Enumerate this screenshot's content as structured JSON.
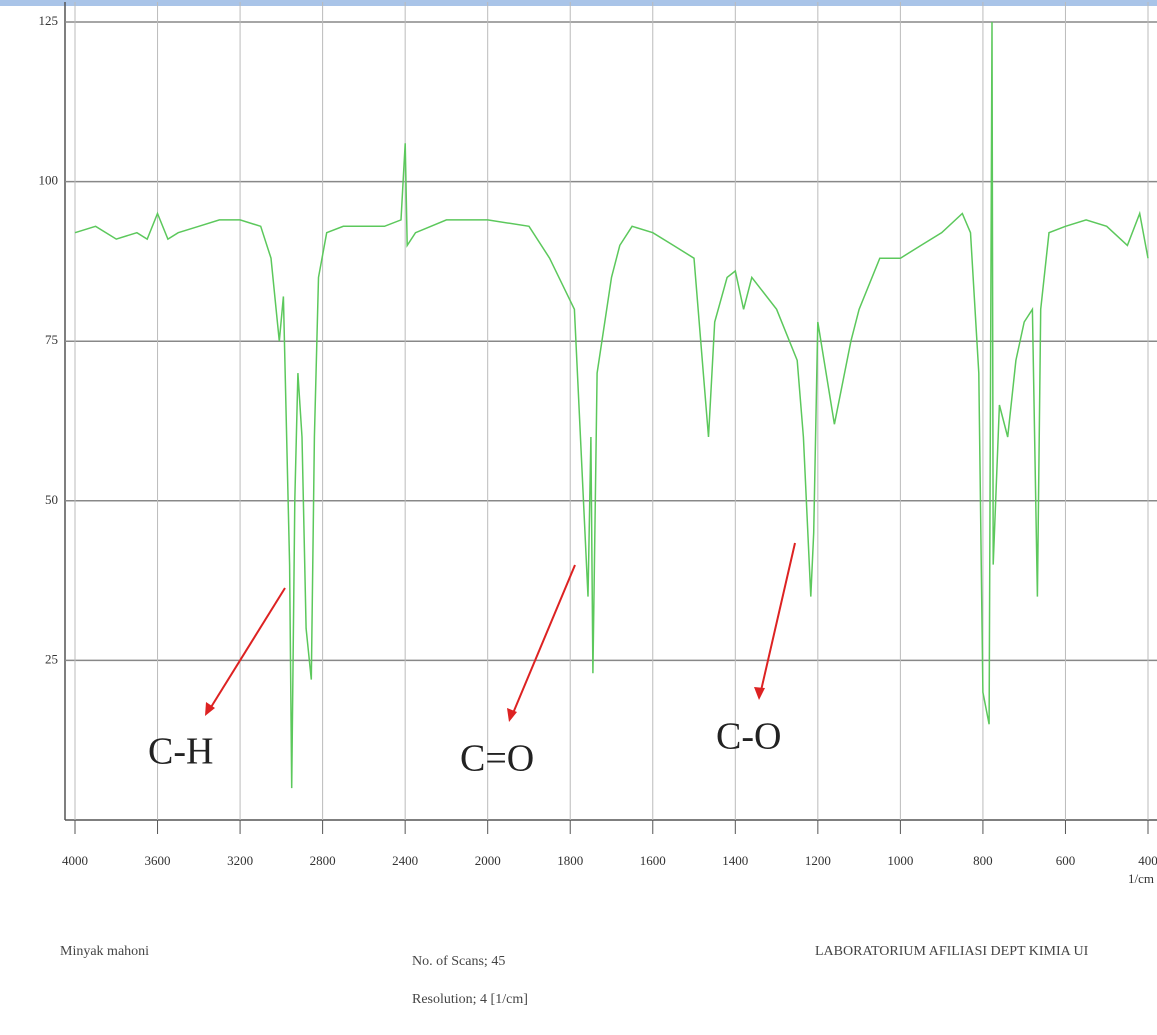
{
  "chart_data": {
    "type": "line",
    "x": [
      4000,
      3900,
      3800,
      3700,
      3650,
      3600,
      3550,
      3500,
      3400,
      3300,
      3200,
      3100,
      3050,
      3010,
      2990,
      2960,
      2950,
      2935,
      2920,
      2900,
      2880,
      2855,
      2840,
      2820,
      2780,
      2700,
      2600,
      2500,
      2420,
      2400,
      2390,
      2350,
      2200,
      2000,
      1900,
      1850,
      1790,
      1757,
      1750,
      1745,
      1735,
      1700,
      1680,
      1650,
      1600,
      1550,
      1500,
      1465,
      1450,
      1420,
      1400,
      1380,
      1360,
      1300,
      1250,
      1235,
      1217,
      1210,
      1200,
      1160,
      1120,
      1100,
      1050,
      1000,
      950,
      900,
      850,
      830,
      810,
      800,
      785,
      778,
      775,
      760,
      740,
      720,
      700,
      680,
      668,
      660,
      640,
      600,
      550,
      500,
      450,
      420,
      400
    ],
    "values": [
      92,
      93,
      91,
      92,
      91,
      95,
      91,
      92,
      93,
      94,
      94,
      93,
      88,
      75,
      82,
      40,
      5,
      50,
      70,
      60,
      30,
      22,
      60,
      85,
      92,
      93,
      93,
      93,
      94,
      106,
      90,
      92,
      94,
      94,
      93,
      88,
      80,
      35,
      60,
      23,
      70,
      85,
      90,
      93,
      92,
      90,
      88,
      60,
      78,
      85,
      86,
      80,
      85,
      80,
      72,
      60,
      35,
      45,
      78,
      62,
      75,
      80,
      88,
      88,
      90,
      92,
      95,
      92,
      70,
      20,
      15,
      125,
      40,
      65,
      60,
      72,
      78,
      80,
      35,
      80,
      92,
      93,
      94,
      93,
      90,
      95,
      88
    ],
    "color": "#5cc85c",
    "xlim": [
      4000,
      400
    ],
    "xticks": [
      4000,
      3600,
      3200,
      2800,
      2400,
      2000,
      1800,
      1600,
      1400,
      1200,
      1000,
      800,
      600,
      400
    ],
    "ylim": [
      0,
      125
    ],
    "yticks": [
      25,
      50,
      75,
      100,
      125
    ],
    "grid": true,
    "x_label": "1/cm",
    "annotations": [
      "C-H",
      "C=O",
      "C-O"
    ],
    "footer": {
      "sample": "Minyak mahoni",
      "scans": "No. of Scans; 45",
      "resolution": "Resolution; 4 [1/cm]",
      "lab": "LABORATORIUM AFILIASI DEPT KIMIA UI"
    }
  }
}
